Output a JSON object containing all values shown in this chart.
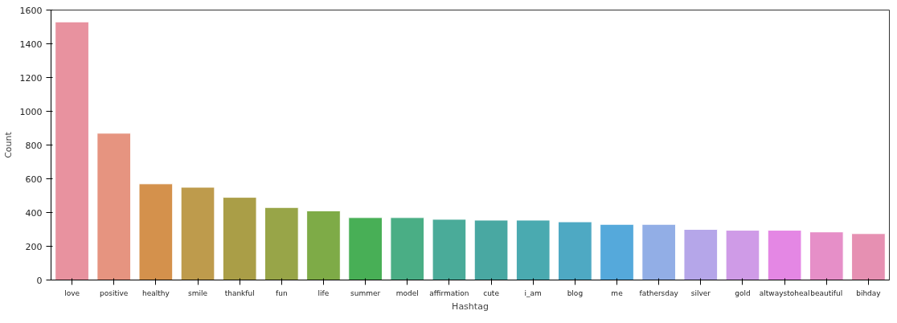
{
  "chart_data": {
    "type": "bar",
    "xlabel": "Hashtag",
    "ylabel": "Count",
    "categories": [
      "love",
      "positive",
      "healthy",
      "smile",
      "thankful",
      "fun",
      "life",
      "summer",
      "model",
      "affirmation",
      "cute",
      "i_am",
      "blog",
      "me",
      "fathersday",
      "silver",
      "gold",
      "altwaystoheal",
      "beautiful",
      "bihday"
    ],
    "values": [
      1530,
      870,
      570,
      550,
      490,
      430,
      410,
      370,
      370,
      360,
      355,
      355,
      345,
      330,
      330,
      300,
      295,
      295,
      285,
      275
    ],
    "colors": [
      "#e8929f",
      "#e69480",
      "#d4914c",
      "#be9b4c",
      "#aa9e47",
      "#98a548",
      "#7eab47",
      "#48af56",
      "#4aae85",
      "#4aab99",
      "#49a8a2",
      "#4aaab0",
      "#4ea9c3",
      "#55a9db",
      "#92aee6",
      "#b5a6e9",
      "#cf9be7",
      "#e487e4",
      "#e68fc8",
      "#e690b2"
    ],
    "ylim": [
      0,
      1600
    ],
    "yticks": [
      0,
      200,
      400,
      600,
      800,
      1000,
      1200,
      1400,
      1600
    ],
    "grid": false
  }
}
